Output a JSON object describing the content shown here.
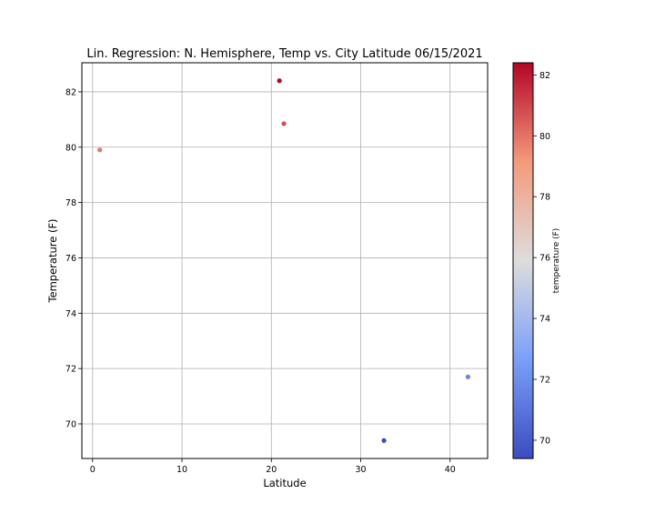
{
  "chart_data": {
    "type": "scatter",
    "title": "Lin. Regression: N. Hemisphere, Temp vs. City Latitude  06/15/2021",
    "xlabel": "Latitude",
    "ylabel": "Temperature (F)",
    "xlim": [
      -1.2,
      44.2
    ],
    "ylim": [
      68.75,
      83.05
    ],
    "xticks": [
      0,
      10,
      20,
      30,
      40
    ],
    "yticks": [
      70,
      72,
      74,
      76,
      78,
      80,
      82
    ],
    "grid": true,
    "colormap": "coolwarm",
    "colorbar": {
      "label": "temperature (F)",
      "range": [
        69.4,
        82.4
      ],
      "ticks": [
        70,
        72,
        74,
        76,
        78,
        80,
        82
      ]
    },
    "points": [
      {
        "x": 0.8,
        "y": 79.9
      },
      {
        "x": 20.9,
        "y": 82.4
      },
      {
        "x": 21.4,
        "y": 80.85
      },
      {
        "x": 32.6,
        "y": 69.4
      },
      {
        "x": 42.0,
        "y": 71.7
      }
    ]
  }
}
